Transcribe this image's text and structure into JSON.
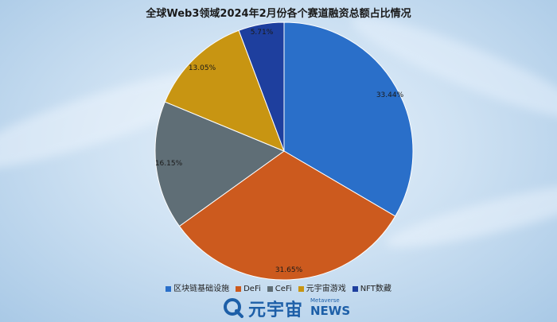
{
  "chart_data": {
    "type": "pie",
    "title": "全球Web3领域2024年2月份各个赛道融资总额占比情况",
    "categories": [
      "区块链基础设施",
      "DeFi",
      "CeFi",
      "元宇宙游戏",
      "NFT数藏"
    ],
    "values": [
      33.44,
      31.65,
      16.15,
      13.05,
      5.71
    ],
    "labels": [
      "33.44%",
      "31.65%",
      "16.15%",
      "13.05%",
      "5.71%"
    ],
    "colors": [
      "#2a6fc9",
      "#cc5a1e",
      "#5f6e76",
      "#c89512",
      "#1e3f9e"
    ],
    "legend_position": "bottom"
  },
  "logo": {
    "cn": "元宇宙",
    "en_small": "Metaverse",
    "en": "NEWS"
  }
}
